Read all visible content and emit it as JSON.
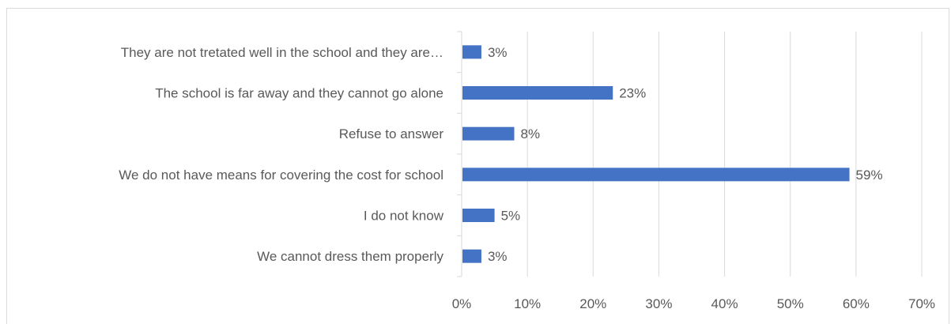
{
  "chart_data": {
    "type": "bar",
    "orientation": "horizontal",
    "title": "",
    "xlabel": "",
    "ylabel": "",
    "categories": [
      "They are not tretated well in the school and they  are…",
      "The school is far away and they cannot go alone",
      "Refuse to answer",
      "We do not have means for covering the cost for school",
      "I do not know",
      "We cannot dress them properly"
    ],
    "values": [
      3,
      23,
      8,
      59,
      5,
      3
    ],
    "data_labels": [
      "3%",
      "23%",
      "8%",
      "59%",
      "5%",
      "3%"
    ],
    "xlim": [
      0,
      70
    ],
    "x_ticks": [
      "0%",
      "10%",
      "20%",
      "30%",
      "40%",
      "50%",
      "60%",
      "70%"
    ],
    "grid": true,
    "legend": "none",
    "colors": {
      "bar": "#4472C4",
      "grid": "#d9d9d9",
      "text": "#595959"
    }
  }
}
